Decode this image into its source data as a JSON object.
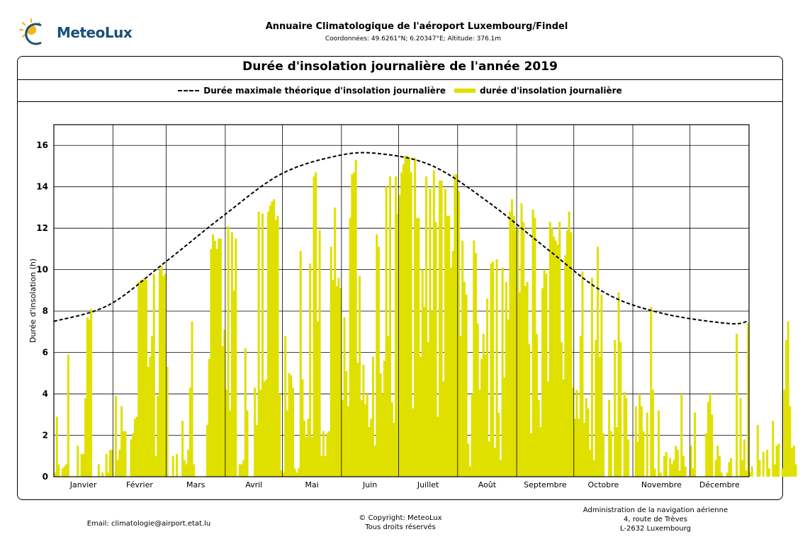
{
  "header": {
    "logo_text": "MeteoLux",
    "title": "Annuaire Climatologique de l'aéroport Luxembourg/Findel",
    "coords": "Coordonnées: 49.6261°N; 6.20347°E; Altitude: 376.1m"
  },
  "footer": {
    "email": "Email: climatologie@airport.etat.lu",
    "copyright_line1": "© Copyright: MeteoLux",
    "copyright_line2": "Tous droits réservés",
    "address_line1": "Administration de la navigation aérienne",
    "address_line2": "4, route de Trèves",
    "address_line3": "L-2632 Luxembourg"
  },
  "colors": {
    "bar": "#e0e000",
    "dash": "#000000"
  },
  "chart_data": {
    "type": "bar",
    "title": "Durée d'insolation journalière de l'année 2019",
    "ylabel": "Durée d'insolation (h)",
    "xlabel": "",
    "ylim": [
      0,
      17
    ],
    "yticks": [
      0,
      2,
      4,
      6,
      8,
      10,
      12,
      14,
      16
    ],
    "grid": true,
    "legend_position": "top",
    "months": [
      "Janvier",
      "Février",
      "Mars",
      "Avril",
      "Mai",
      "Juin",
      "Juillet",
      "Août",
      "Septembre",
      "Octobre",
      "Novembre",
      "Décembre"
    ],
    "series": [
      {
        "name": "Durée maximale théorique d'insolation journalière",
        "style": "dashed-line",
        "x_day": [
          1,
          30,
          60,
          90,
          120,
          150,
          172,
          200,
          230,
          260,
          290,
          320,
          355,
          365
        ],
        "values": [
          7.5,
          8.3,
          10.4,
          12.6,
          14.6,
          15.5,
          15.6,
          15.0,
          13.2,
          11.0,
          8.9,
          7.9,
          7.4,
          7.5
        ]
      },
      {
        "name": "durée d'insolation journalière",
        "style": "bar",
        "values": [
          0.2,
          2.9,
          0.6,
          0,
          0.4,
          0.5,
          0.6,
          5.9,
          0,
          0,
          0,
          0,
          1.5,
          0,
          1.1,
          1.1,
          3.8,
          7.7,
          7.6,
          8.1,
          0,
          0,
          0,
          0.6,
          0,
          0.2,
          0,
          1.1,
          0.2,
          1.3,
          1.3,
          0,
          3.9,
          0.8,
          1.3,
          3.4,
          2.2,
          2.2,
          0,
          0,
          1.8,
          2.1,
          2.8,
          2.9,
          9.4,
          9.5,
          9.5,
          9.6,
          9.5,
          5.3,
          5.8,
          6.8,
          9.8,
          1.0,
          3.9,
          10.0,
          10.2,
          9.7,
          9.8,
          5.3,
          0,
          0,
          1.0,
          0,
          1.1,
          0,
          0,
          2.7,
          0.8,
          0.6,
          1.3,
          4.3,
          7.5,
          0.6,
          0,
          0,
          0,
          0,
          0,
          0,
          2.5,
          5.7,
          11.0,
          11.7,
          11.4,
          11.0,
          11.5,
          11.5,
          6.3,
          7.1,
          4.2,
          12.1,
          3.2,
          11.8,
          9.0,
          11.5,
          0,
          0.6,
          0.6,
          0.8,
          6.2,
          3.2,
          0,
          0,
          0,
          4.3,
          2.5,
          12.8,
          4.2,
          12.7,
          4.6,
          4.7,
          12.8,
          13.1,
          13.3,
          13.4,
          12.4,
          12.6,
          4.0,
          0.3,
          0.2,
          6.8,
          3.2,
          5.0,
          4.9,
          4.3,
          0.4,
          0.2,
          0.4,
          10.9,
          4.7,
          2.7,
          1.9,
          2.8,
          10.3,
          1.9,
          14.5,
          14.7,
          7.5,
          11.9,
          1.0,
          2.2,
          1.0,
          2.1,
          2.2,
          11.1,
          9.5,
          13.0,
          9.2,
          9.6,
          9.1,
          3.7,
          7.7,
          5.1,
          3.4,
          12.5,
          14.6,
          14.7,
          15.3,
          5.5,
          9.7,
          3.7,
          5.4,
          3.5,
          4.0,
          2.4,
          2.8,
          5.8,
          1.5,
          11.7,
          11.1,
          5.0,
          4.0,
          5.6,
          14.0,
          6.8,
          14.5,
          3.6,
          2.6,
          14.5,
          12.7,
          13.6,
          14.7,
          15.1,
          15.5,
          15.5,
          15.4,
          14.7,
          3.3,
          15.4,
          12.5,
          12.5,
          5.8,
          10.0,
          8.2,
          14.5,
          6.5,
          13.9,
          8.0,
          14.8,
          12.3,
          2.9,
          14.3,
          14.3,
          4.6,
          13.9,
          12.6,
          12.6,
          10.1,
          10.9,
          14.6,
          14.6,
          13.8,
          6.8,
          11.4,
          9.4,
          8.8,
          1.6,
          0.5,
          4.0,
          11.4,
          10.8,
          7.4,
          4.2,
          5.7,
          6.9,
          5.9,
          8.6,
          1.7,
          10.3,
          10.4,
          1.4,
          10.5,
          3.1,
          0.8,
          10.1,
          4.8,
          9.4,
          7.6,
          12.8,
          13.4,
          12.6,
          11.9,
          12.0,
          8.9,
          13.2,
          12.3,
          9.2,
          9.4,
          6.4,
          2.1,
          12.9,
          12.5,
          6.9,
          3.7,
          2.4,
          9.1,
          10.0,
          9.8,
          4.6,
          12.3,
          12.0,
          11.6,
          11.4,
          11.2,
          12.3,
          6.5,
          4.7,
          10.7,
          11.9,
          12.8,
          11.8,
          4.3,
          2.8,
          4.2,
          2.8,
          6.8,
          9.9,
          2.6,
          3.8,
          3.3,
          1.3,
          9.6,
          0.8,
          6.6,
          11.1,
          5.8,
          8.8,
          2.1,
          0,
          0,
          3.7,
          2.2,
          0,
          6.6,
          2.4,
          8.9,
          6.5,
          0,
          4.1,
          3.8,
          1.8,
          0,
          0,
          0,
          3.4,
          1.7,
          4.0,
          3.4,
          2.2,
          0,
          3.1,
          0,
          8.2,
          4.2,
          0.4,
          0,
          3.2,
          0.2,
          0,
          1.0,
          1.2,
          0,
          0.9,
          0.6,
          0.8,
          1.5,
          1.3,
          0.3,
          4.0,
          1.0,
          0.5,
          0,
          0,
          1.5,
          0.4,
          3.1,
          0,
          0,
          0,
          0,
          0,
          2.1,
          3.6,
          4.0,
          3.0,
          0,
          0.8,
          1.5,
          1.0,
          0.2,
          0,
          0,
          0.2,
          0.7,
          0.9,
          0,
          0,
          6.9,
          0,
          3.8,
          0.8,
          1.8,
          0.3,
          7.4,
          0.2,
          0.5,
          0,
          0,
          2.5,
          0.8,
          0,
          1.2,
          0,
          1.3,
          0.4,
          0,
          2.7,
          0.6,
          1.5,
          1.6,
          0,
          0.4,
          4.2,
          6.6,
          7.5,
          3.4,
          1.4,
          1.5,
          0.6,
          0
        ]
      }
    ]
  }
}
